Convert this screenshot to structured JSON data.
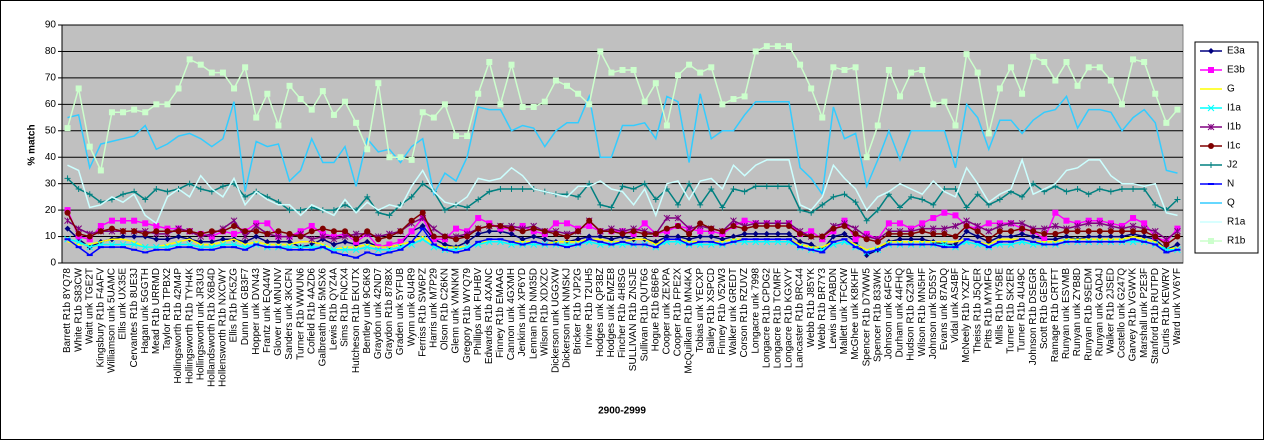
{
  "chart_data": {
    "type": "line",
    "xlabel": "2900-2999",
    "ylabel": "% match",
    "ylim": [
      0,
      90
    ],
    "yticks": [
      0,
      10,
      20,
      30,
      40,
      50,
      60,
      70,
      80,
      90
    ],
    "grid": true,
    "legend": "right",
    "categories": [
      "Barrett R1b 8YQ78",
      "White R1b S83CW",
      "Waitt unk TGE2T",
      "Kingsbury R1b F4AFV",
      "Williamson unk 5UAMC",
      "Ellis unk UX35E",
      "Cervantes R1b 8UE3J",
      "Hagan unk 5GGTH",
      "Mead R1b URRMD",
      "Taylor R1b TPBX2",
      "Hollingsworth R1b 42M4P",
      "Hollingsworth R1b TYH4K",
      "Hollingsworth unk JR3U3",
      "Hollandsworth R1b X6B4D",
      "Hollensworth R1b NXCWY",
      "Ellis R1b FK5ZG",
      "Dunn unk GB3F7",
      "Hopper unk DVN43",
      "Frantz unk EQ44W",
      "Glover unk MNUNV",
      "Sanders unk 3KCFN",
      "Turner R1b WWUN6",
      "Cofield R1b 4AZD6",
      "Galbreath unk 5MSX6",
      "Lewis R1b QYZ4A",
      "Sims R1b FNCX4",
      "Hutcheson R1b EKUTX",
      "Bentley unk 9C6K9",
      "Graydon unk 42ND7",
      "Graydon R1b 8788X",
      "Graden unk 5YFUB",
      "Wynn unk 6U4R9",
      "Ferriss R1b SW6PZ",
      "Harris unk M7P29",
      "Olson R1b C26KN",
      "Glenn unk VMNKM",
      "Gregory R1b WYQ79",
      "Phillips unk FUHBV",
      "Edwards R1b 4XANC",
      "Finney R1b EMAAG",
      "Cannon unk 4GXMH",
      "Jenkins unk XP6YD",
      "Lennan R1b NM35D",
      "Wilson R1b XDXZC",
      "Dickerson unk UGGXW",
      "Dickerson unk NMSKJ",
      "Bricker R1b YJP2G",
      "Irvine R1b T2UH5",
      "Hodges unk QP3BZ",
      "Hodges unk EMZE8",
      "Fincher R1b 4H8SG",
      "SULLIVAN R1b ZNSJE",
      "Sullivan R1b QUT6G",
      "Hogue R1b 6B6P6",
      "Cooper unk ZEXPA",
      "Cooper R1b FPE2X",
      "McQuilkan R1b MN4KA",
      "Tobias unk YECXP",
      "Bailey R1b XSPCD",
      "Finney R1b V52W3",
      "Walker unk GREDT",
      "Corson R1b RZUVZ",
      "Longacre unk 7998",
      "Longacre R1b CPDG2",
      "Longacre R1b TCMRF",
      "Longacre R1b KGXVY",
      "Lancaster R1b BRC44",
      "Webb R1b J85YK",
      "Webb R1b BR7Y3",
      "Lewis unk PABDN",
      "Mallett unk TFCKW",
      "McGhee unk K8KHF",
      "Spencer R1b D7WW5",
      "Spencer R1b 833WK",
      "Johnson unk 64FGK",
      "Durham unk 44FHQ",
      "Hudson R1b GZ3MP",
      "Wilson R1b MN5HF",
      "Johnson unk 5D5SY",
      "Evans unk 87ADQ",
      "Vidal unk AS4BF",
      "McNeely R1b YXZFY",
      "Theiss R1b J5QER",
      "Pitts R1b MYMFG",
      "Mills R1b HY5BE",
      "Turner R1b SK2ER",
      "Turner R1b 4U49C",
      "Johnson R1b DSEGR",
      "Scott R1b GESPP",
      "Ramage R1b CRTFT",
      "Runyan unk ESVMB",
      "Runyan unk ZYB8D",
      "Runyan R1b 9SEDM",
      "Runyan unk GAD4J",
      "Walker R1b 2JSED",
      "Costello unk G247Q",
      "Garvey R1b VGWVK",
      "Marshall unk P2E3F",
      "Stanford R1b RUTPD",
      "Curtis R1b KEWRV",
      "Ward unk VV6YF"
    ],
    "series": [
      {
        "name": "E3a",
        "color": "#000080",
        "marker": "diamond",
        "values": [
          13,
          9,
          6,
          8,
          9,
          10,
          10,
          10,
          9,
          9,
          10,
          9,
          8,
          8,
          9,
          9,
          8,
          10,
          8,
          8,
          8,
          6,
          7,
          9,
          7,
          8,
          7,
          8,
          6,
          6,
          7,
          12,
          14,
          9,
          7,
          6,
          8,
          11,
          12,
          12,
          11,
          9,
          10,
          9,
          8,
          8,
          9,
          10,
          10,
          9,
          10,
          9,
          9,
          8,
          10,
          10,
          9,
          10,
          10,
          9,
          10,
          11,
          11,
          11,
          11,
          11,
          8,
          7,
          5,
          10,
          11,
          8,
          3,
          5,
          8,
          9,
          9,
          9,
          8,
          7,
          7,
          12,
          10,
          8,
          10,
          10,
          11,
          10,
          9,
          9,
          10,
          9,
          10,
          10,
          10,
          10,
          11,
          10,
          9,
          5,
          7
        ]
      },
      {
        "name": "E3b",
        "color": "#ff00ff",
        "marker": "square",
        "values": [
          20,
          10,
          9,
          14,
          16,
          16,
          16,
          15,
          14,
          13,
          13,
          12,
          11,
          10,
          12,
          11,
          12,
          15,
          15,
          10,
          10,
          12,
          14,
          11,
          10,
          11,
          8,
          11,
          6,
          7,
          8,
          12,
          17,
          9,
          9,
          13,
          12,
          17,
          15,
          13,
          13,
          14,
          12,
          11,
          15,
          15,
          13,
          14,
          12,
          12,
          12,
          11,
          15,
          11,
          12,
          14,
          13,
          12,
          12,
          11,
          14,
          16,
          15,
          15,
          15,
          15,
          11,
          12,
          9,
          12,
          16,
          9,
          11,
          9,
          15,
          15,
          13,
          15,
          17,
          19,
          18,
          14,
          13,
          15,
          15,
          15,
          13,
          12,
          9,
          19,
          16,
          15,
          16,
          16,
          15,
          14,
          17,
          15,
          10,
          8,
          13
        ]
      },
      {
        "name": "G",
        "color": "#ffff00",
        "marker": "none",
        "values": [
          8,
          7,
          7,
          8,
          9,
          9,
          8,
          6,
          6,
          7,
          8,
          9,
          7,
          7,
          8,
          9,
          7,
          8,
          7,
          7,
          7,
          8,
          8,
          7,
          5,
          6,
          6,
          7,
          6,
          6,
          7,
          8,
          10,
          7,
          6,
          6,
          6,
          7,
          9,
          9,
          8,
          8,
          8,
          7,
          8,
          8,
          8,
          9,
          9,
          8,
          8,
          9,
          9,
          7,
          9,
          9,
          8,
          8,
          8,
          8,
          9,
          9,
          9,
          9,
          9,
          9,
          7,
          6,
          6,
          8,
          9,
          7,
          5,
          6,
          8,
          8,
          8,
          8,
          8,
          8,
          8,
          9,
          8,
          7,
          9,
          9,
          9,
          8,
          8,
          8,
          9,
          9,
          9,
          9,
          9,
          9,
          10,
          9,
          8,
          5,
          6
        ]
      },
      {
        "name": "I1a",
        "color": "#00ffff",
        "marker": "x",
        "values": [
          9,
          8,
          6,
          7,
          7,
          7,
          7,
          6,
          6,
          6,
          7,
          7,
          6,
          6,
          7,
          7,
          6,
          7,
          6,
          6,
          6,
          6,
          6,
          6,
          5,
          5,
          5,
          6,
          5,
          5,
          6,
          7,
          9,
          6,
          5,
          5,
          6,
          7,
          8,
          8,
          7,
          7,
          7,
          7,
          7,
          7,
          7,
          8,
          7,
          7,
          7,
          7,
          7,
          6,
          8,
          8,
          7,
          7,
          7,
          7,
          8,
          8,
          8,
          8,
          8,
          8,
          6,
          5,
          5,
          7,
          8,
          6,
          4,
          5,
          7,
          7,
          7,
          7,
          7,
          7,
          6,
          8,
          7,
          6,
          7,
          7,
          8,
          7,
          7,
          7,
          8,
          8,
          8,
          8,
          8,
          8,
          8,
          8,
          7,
          5,
          5
        ]
      },
      {
        "name": "I1b",
        "color": "#800080",
        "marker": "asterisk",
        "values": [
          16,
          13,
          11,
          12,
          12,
          12,
          12,
          12,
          11,
          11,
          13,
          12,
          10,
          11,
          13,
          16,
          10,
          14,
          11,
          10,
          10,
          11,
          9,
          10,
          9,
          10,
          11,
          11,
          10,
          11,
          12,
          15,
          17,
          13,
          10,
          10,
          11,
          13,
          14,
          14,
          14,
          13,
          14,
          12,
          12,
          11,
          12,
          16,
          12,
          13,
          12,
          13,
          12,
          11,
          17,
          17,
          13,
          14,
          13,
          12,
          16,
          14,
          15,
          15,
          15,
          15,
          12,
          10,
          10,
          14,
          15,
          13,
          10,
          9,
          12,
          12,
          12,
          13,
          13,
          13,
          14,
          16,
          14,
          12,
          14,
          15,
          15,
          13,
          13,
          14,
          13,
          14,
          15,
          15,
          14,
          13,
          14,
          13,
          12,
          9,
          12
        ]
      },
      {
        "name": "I1c",
        "color": "#800000",
        "marker": "circle",
        "values": [
          19,
          11,
          10,
          12,
          13,
          12,
          12,
          11,
          12,
          12,
          12,
          12,
          11,
          12,
          12,
          14,
          12,
          12,
          11,
          12,
          11,
          10,
          12,
          13,
          12,
          12,
          9,
          12,
          9,
          10,
          12,
          16,
          19,
          10,
          10,
          9,
          10,
          13,
          14,
          14,
          13,
          12,
          13,
          12,
          11,
          10,
          12,
          16,
          12,
          12,
          11,
          12,
          11,
          11,
          13,
          14,
          11,
          15,
          13,
          12,
          14,
          13,
          14,
          14,
          14,
          14,
          11,
          10,
          10,
          13,
          14,
          11,
          9,
          8,
          11,
          11,
          11,
          12,
          11,
          11,
          10,
          14,
          12,
          9,
          12,
          12,
          13,
          12,
          11,
          11,
          12,
          12,
          12,
          12,
          12,
          12,
          12,
          12,
          10,
          7,
          10
        ]
      },
      {
        "name": "J2",
        "color": "#008080",
        "marker": "plus",
        "values": [
          32,
          28,
          26,
          23,
          24,
          26,
          27,
          24,
          28,
          27,
          28,
          30,
          28,
          27,
          29,
          30,
          25,
          27,
          25,
          23,
          20,
          20,
          21,
          20,
          20,
          22,
          20,
          25,
          19,
          18,
          22,
          25,
          30,
          27,
          20,
          22,
          21,
          24,
          27,
          28,
          28,
          28,
          28,
          27,
          26,
          26,
          25,
          30,
          22,
          21,
          29,
          28,
          30,
          24,
          28,
          22,
          30,
          22,
          28,
          21,
          28,
          27,
          29,
          29,
          29,
          29,
          20,
          19,
          22,
          25,
          26,
          23,
          16,
          20,
          26,
          21,
          25,
          24,
          22,
          28,
          28,
          21,
          26,
          22,
          24,
          27,
          25,
          30,
          27,
          29,
          27,
          28,
          26,
          28,
          27,
          28,
          28,
          28,
          22,
          20,
          24
        ]
      },
      {
        "name": "N",
        "color": "#0000ff",
        "marker": "dash",
        "values": [
          9,
          6,
          3,
          6,
          6,
          6,
          5,
          4,
          5,
          5,
          6,
          6,
          5,
          5,
          6,
          6,
          5,
          7,
          6,
          6,
          5,
          5,
          5,
          6,
          4,
          3,
          2,
          4,
          3,
          4,
          5,
          8,
          13,
          7,
          5,
          4,
          5,
          8,
          9,
          9,
          8,
          7,
          8,
          7,
          7,
          6,
          7,
          9,
          8,
          7,
          8,
          7,
          7,
          6,
          9,
          9,
          7,
          8,
          8,
          7,
          8,
          9,
          9,
          9,
          9,
          9,
          6,
          5,
          4,
          8,
          9,
          6,
          4,
          5,
          7,
          7,
          7,
          7,
          7,
          6,
          6,
          9,
          8,
          6,
          8,
          8,
          9,
          8,
          7,
          7,
          8,
          8,
          8,
          8,
          8,
          8,
          9,
          8,
          7,
          4,
          5
        ]
      },
      {
        "name": "Q",
        "color": "#33ccff",
        "marker": "none",
        "values": [
          55,
          56,
          36,
          45,
          46,
          47,
          48,
          52,
          43,
          45,
          48,
          49,
          47,
          44,
          47,
          61,
          27,
          46,
          44,
          45,
          31,
          35,
          47,
          38,
          38,
          44,
          29,
          47,
          42,
          43,
          38,
          44,
          47,
          26,
          34,
          31,
          40,
          59,
          58,
          58,
          50,
          52,
          51,
          44,
          50,
          53,
          53,
          63,
          40,
          40,
          52,
          52,
          53,
          47,
          63,
          61,
          38,
          64,
          47,
          50,
          50,
          56,
          61,
          61,
          61,
          61,
          36,
          32,
          26,
          59,
          47,
          49,
          29,
          39,
          50,
          39,
          50,
          50,
          50,
          50,
          36,
          60,
          55,
          43,
          54,
          54,
          49,
          54,
          57,
          58,
          63,
          51,
          58,
          58,
          57,
          50,
          55,
          58,
          53,
          35,
          34
        ]
      },
      {
        "name": "R1a",
        "color": "#ccffff",
        "marker": "none",
        "values": [
          37,
          35,
          21,
          22,
          25,
          23,
          26,
          18,
          15,
          25,
          28,
          25,
          33,
          28,
          25,
          32,
          22,
          27,
          24,
          22,
          22,
          18,
          22,
          20,
          18,
          24,
          19,
          23,
          20,
          22,
          21,
          29,
          35,
          27,
          23,
          22,
          25,
          32,
          31,
          32,
          36,
          33,
          28,
          27,
          26,
          25,
          29,
          29,
          31,
          28,
          27,
          22,
          28,
          18,
          30,
          31,
          24,
          31,
          32,
          28,
          37,
          33,
          37,
          39,
          39,
          39,
          22,
          20,
          25,
          37,
          32,
          28,
          20,
          25,
          27,
          30,
          28,
          26,
          31,
          27,
          25,
          36,
          30,
          23,
          26,
          28,
          39,
          26,
          28,
          30,
          35,
          36,
          39,
          39,
          33,
          30,
          30,
          29,
          30,
          19,
          18
        ]
      },
      {
        "name": "R1b",
        "color": "#ccffcc",
        "marker": "square",
        "values": [
          51,
          66,
          44,
          35,
          57,
          57,
          58,
          57,
          60,
          60,
          66,
          77,
          75,
          72,
          72,
          66,
          74,
          55,
          64,
          52,
          67,
          62,
          58,
          65,
          56,
          61,
          53,
          43,
          68,
          40,
          40,
          39,
          57,
          55,
          60,
          48,
          48,
          64,
          76,
          60,
          75,
          59,
          59,
          61,
          69,
          67,
          64,
          60,
          80,
          72,
          73,
          73,
          61,
          68,
          52,
          71,
          75,
          72,
          74,
          60,
          62,
          63,
          80,
          82,
          82,
          82,
          75,
          66,
          55,
          74,
          73,
          74,
          40,
          52,
          73,
          63,
          72,
          73,
          60,
          61,
          52,
          79,
          72,
          49,
          66,
          74,
          64,
          78,
          76,
          69,
          76,
          67,
          74,
          74,
          69,
          60,
          77,
          76,
          64,
          53,
          58
        ]
      }
    ]
  }
}
